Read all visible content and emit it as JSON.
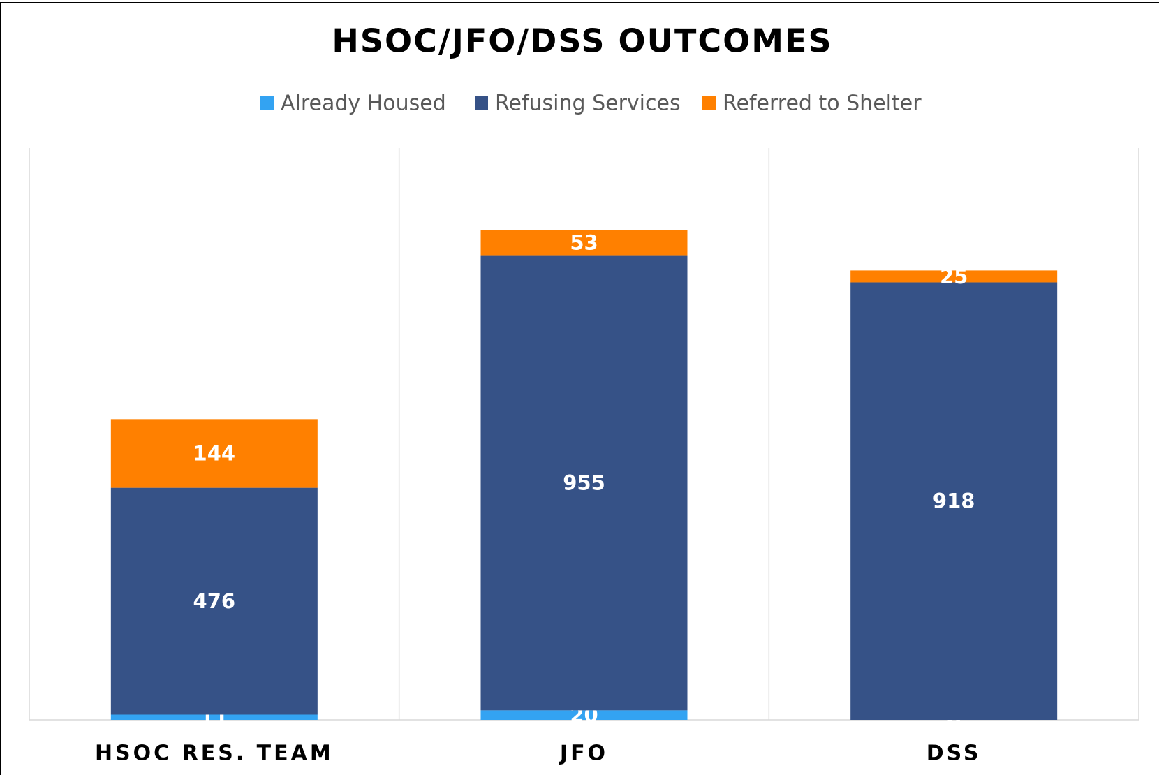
{
  "chart_data": {
    "type": "stacked-bar",
    "title": "HSOC/JFO/DSS OUTCOMES",
    "categories": [
      "HSOC RES. TEAM",
      "JFO",
      "DSS"
    ],
    "series": [
      {
        "name": "Already Housed",
        "color": "#33a3f2",
        "values": [
          11,
          20,
          0
        ]
      },
      {
        "name": "Refusing Services",
        "color": "#365287",
        "values": [
          476,
          955,
          918
        ]
      },
      {
        "name": "Referred to Shelter",
        "color": "#ff8000",
        "values": [
          144,
          53,
          25
        ]
      }
    ],
    "ylim": [
      0,
      1200
    ],
    "legend": "top"
  }
}
